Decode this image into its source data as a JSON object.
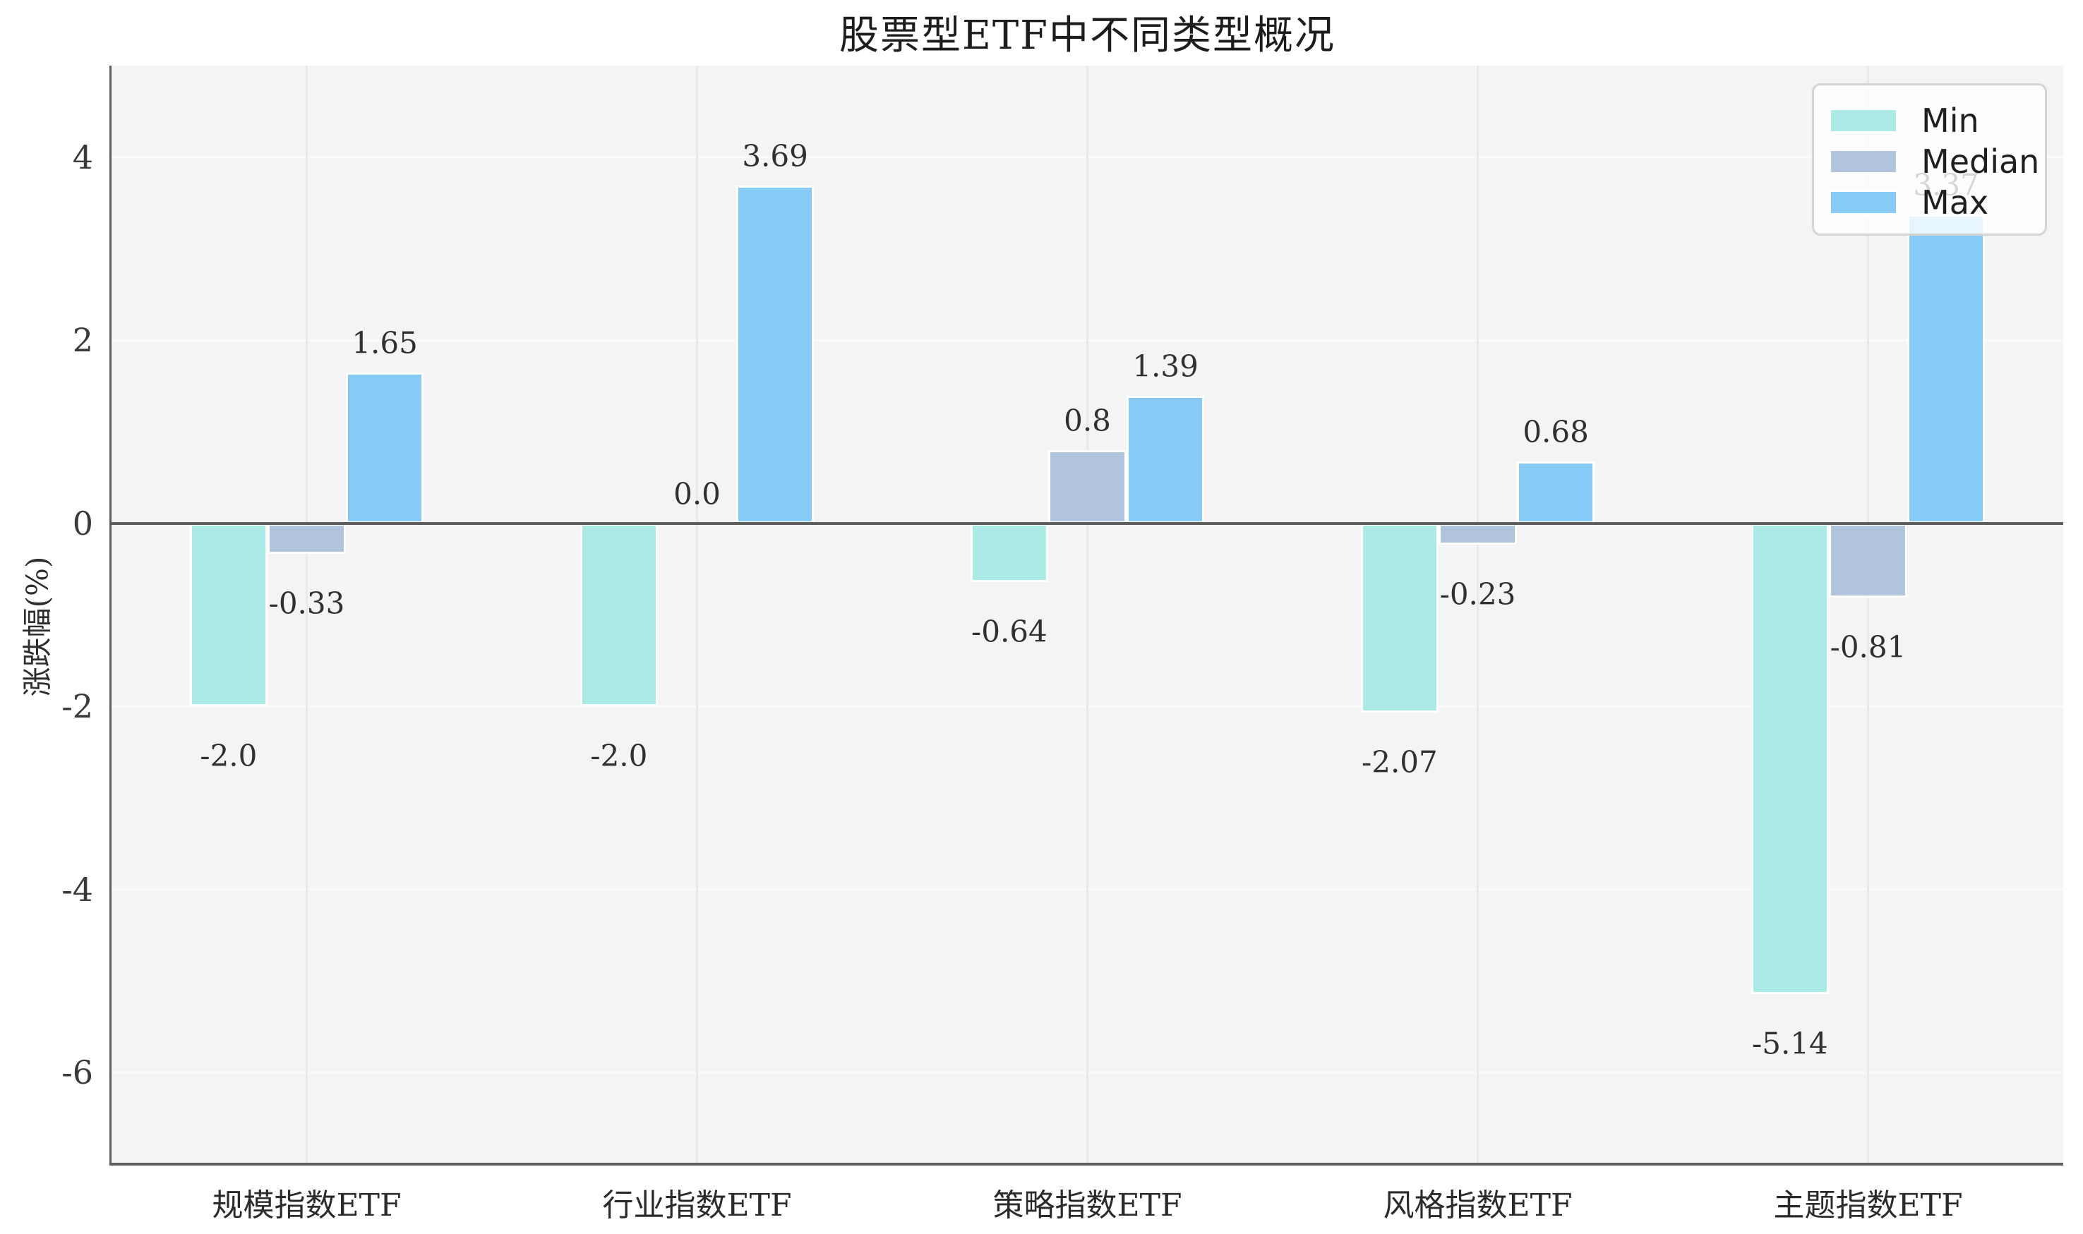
{
  "figure": {
    "title": "股票型ETF中不同类型概况",
    "ylabel": "涨跌幅(%)"
  },
  "chart_data": {
    "type": "bar",
    "title": "股票型ETF中不同类型概况",
    "xlabel": "",
    "ylabel": "涨跌幅(%)",
    "categories": [
      "规模指数ETF",
      "行业指数ETF",
      "策略指数ETF",
      "风格指数ETF",
      "主题指数ETF"
    ],
    "series": [
      {
        "name": "Min",
        "color": "#aaebe6",
        "values": [
          -2.0,
          -2.0,
          -0.64,
          -2.07,
          -5.14
        ],
        "labels": [
          "-2.0",
          "-2.0",
          "-0.64",
          "-2.07",
          "-5.14"
        ]
      },
      {
        "name": "Median",
        "color": "#b0c4de",
        "values": [
          -0.33,
          0.0,
          0.8,
          -0.23,
          -0.81
        ],
        "labels": [
          "-0.33",
          "0.0",
          "0.8",
          "-0.23",
          "-0.81"
        ]
      },
      {
        "name": "Max",
        "color": "#86caf6",
        "values": [
          1.65,
          3.69,
          1.39,
          0.68,
          3.37
        ],
        "labels": [
          "1.65",
          "3.69",
          "1.39",
          "0.68",
          "3.37"
        ]
      }
    ],
    "ylim": [
      -7,
      5
    ],
    "yticks": [
      4,
      2,
      0,
      -2,
      -4,
      -6
    ],
    "grid": true,
    "zero_line": true,
    "legend_position": "upper right",
    "legend_labels": [
      "Min",
      "Median",
      "Max"
    ],
    "theme": {
      "plot_background": "#f4f4f4",
      "h_gridline": "#fafafa",
      "v_gridline": "#e9e9e9",
      "spine": "#5e5e5e",
      "zero_line_color": "#5d5d5d",
      "bar_edge": "#ffffff",
      "text": "#2e2e2e"
    }
  }
}
